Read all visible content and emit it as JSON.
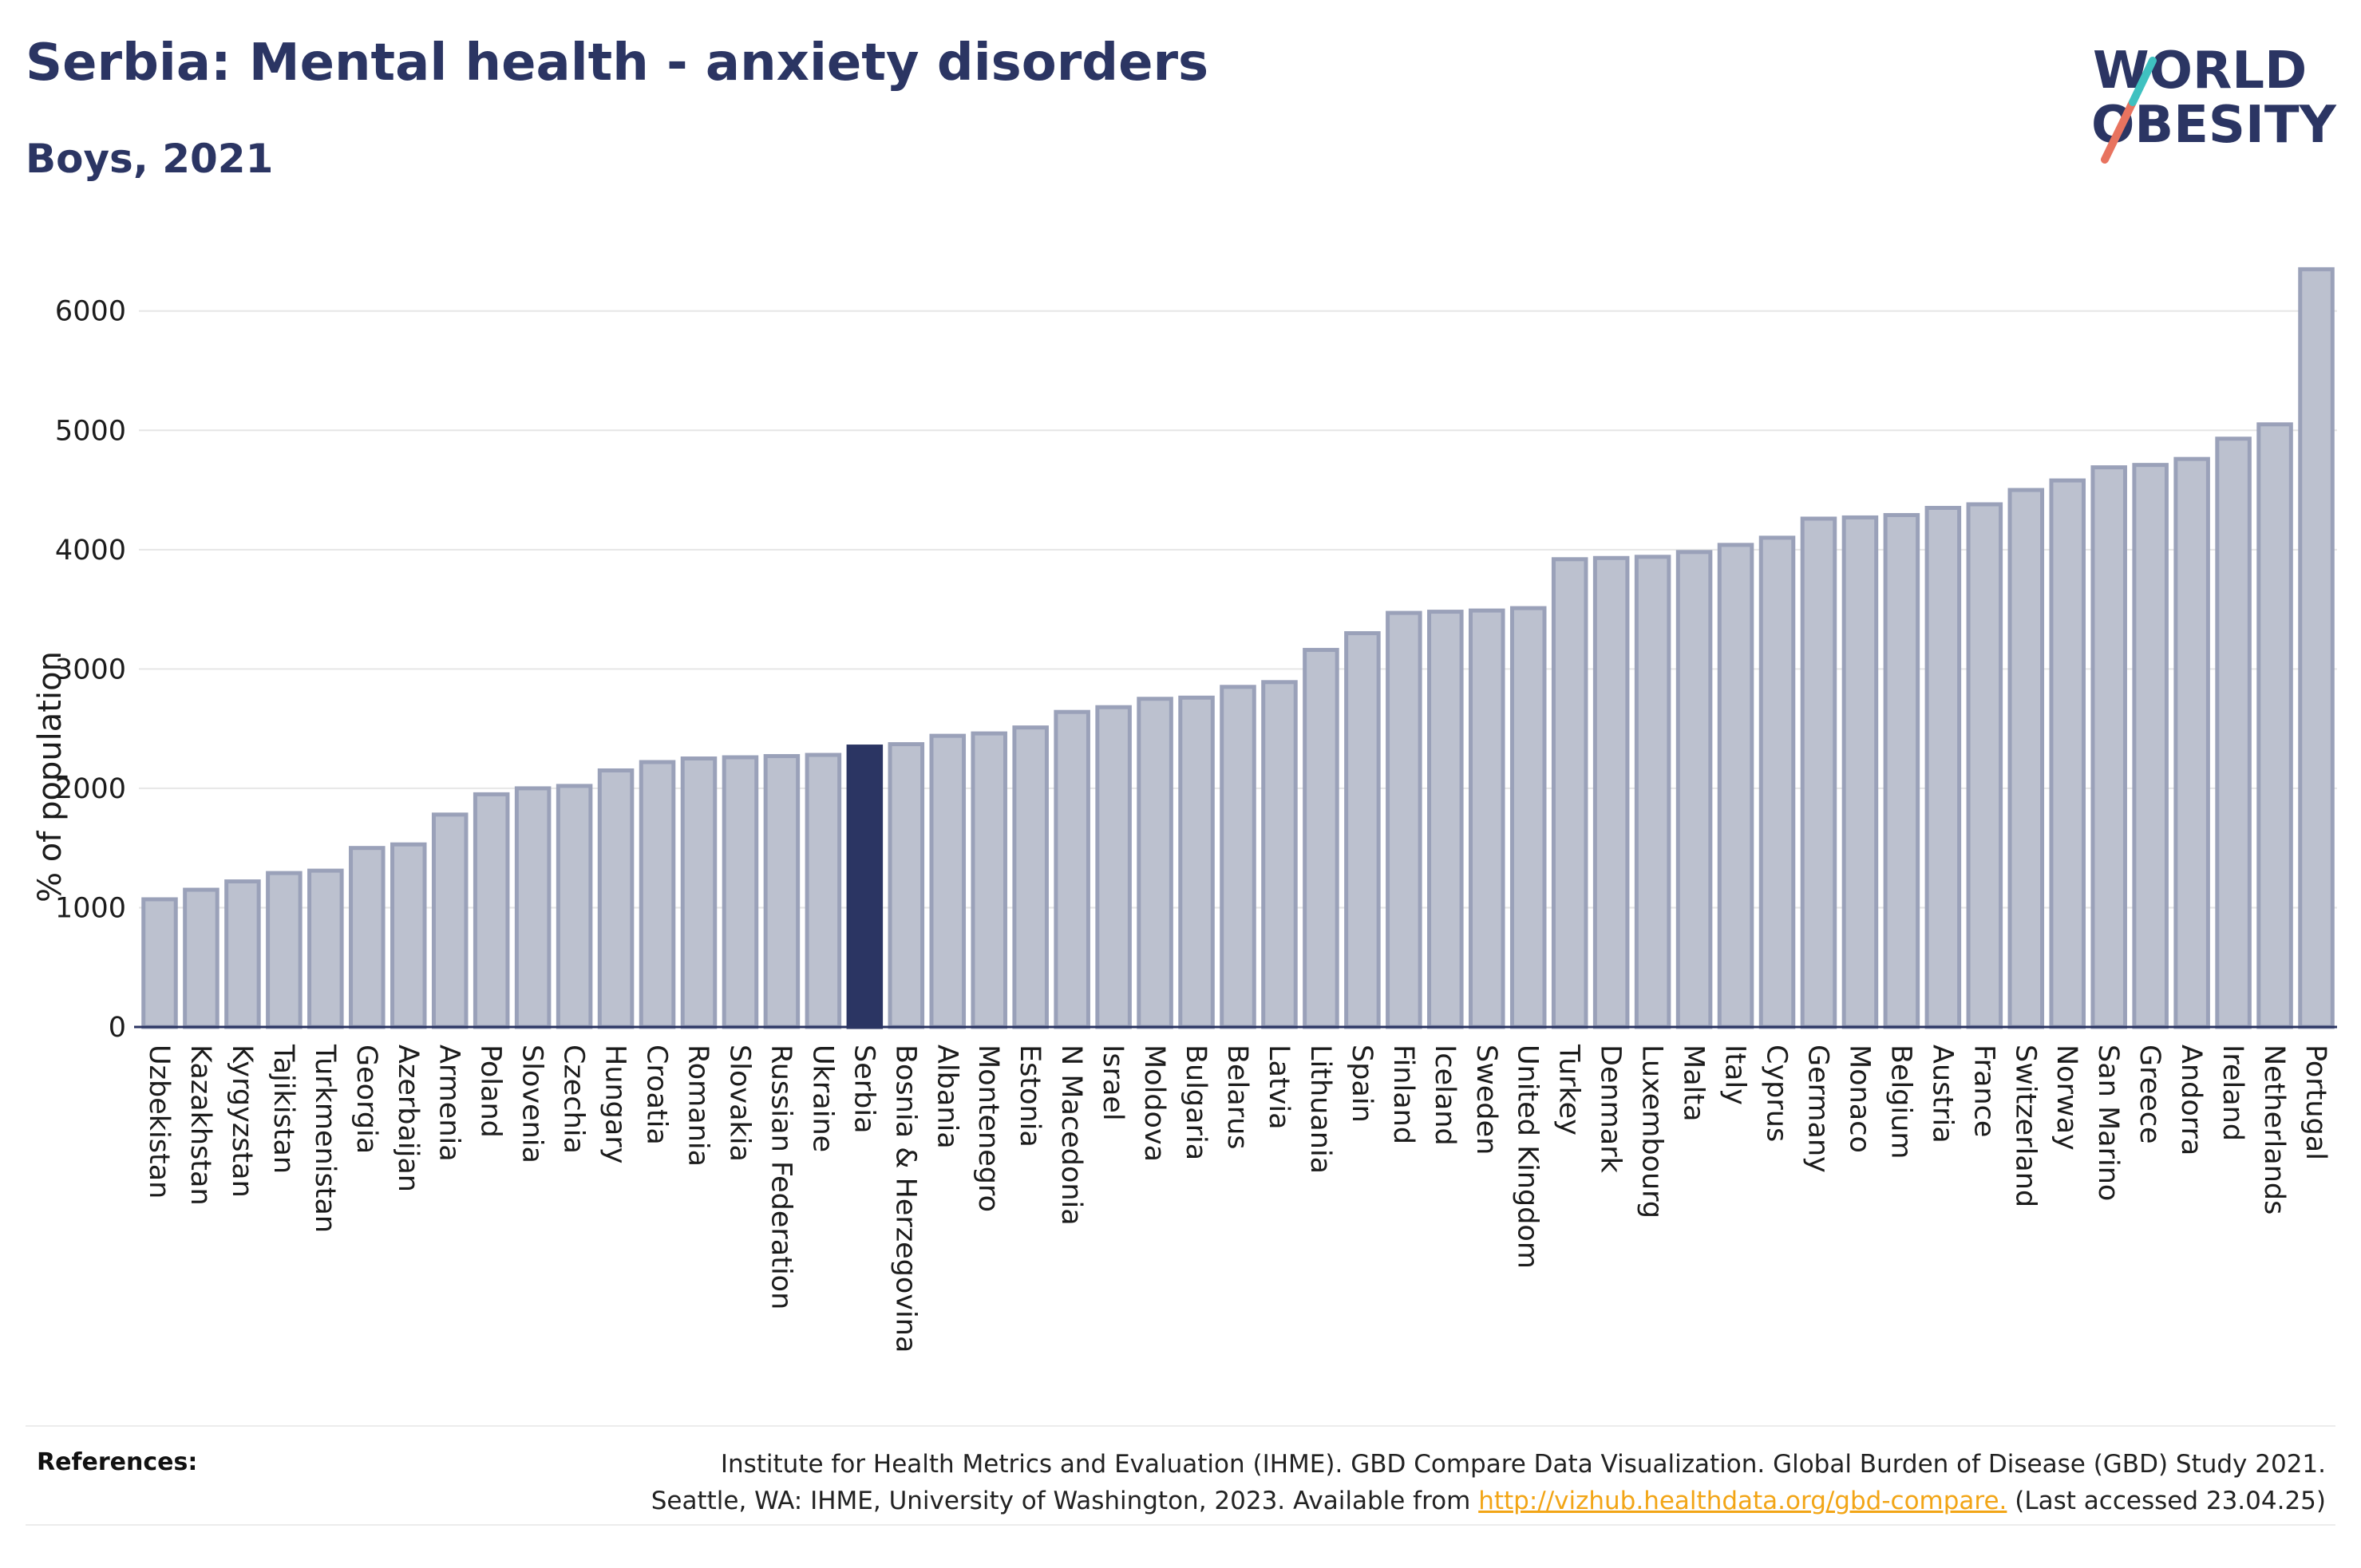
{
  "header": {
    "title": "Serbia: Mental health - anxiety disorders",
    "subtitle": "Boys, 2021"
  },
  "logo": {
    "line1": "WORLD",
    "line2": "OBESITY",
    "slash_colors": [
      "#e8735f",
      "#3fc1c0"
    ]
  },
  "chart_data": {
    "type": "bar",
    "title": "Serbia: Mental health - anxiety disorders",
    "subtitle": "Boys, 2021",
    "xlabel": "",
    "ylabel": "% of population",
    "ylim": [
      0,
      6600
    ],
    "yticks": [
      0,
      1000,
      2000,
      3000,
      4000,
      5000,
      6000
    ],
    "grid": true,
    "highlight": "Serbia",
    "colors": {
      "bar": "#bcc1cf",
      "bar_edge": "#9aa1b9",
      "highlight": "#2b3563"
    },
    "categories": [
      "Uzbekistan",
      "Kazakhstan",
      "Kyrgyzstan",
      "Tajikistan",
      "Turkmenistan",
      "Georgia",
      "Azerbaijan",
      "Armenia",
      "Poland",
      "Slovenia",
      "Czechia",
      "Hungary",
      "Croatia",
      "Romania",
      "Slovakia",
      "Russian Federation",
      "Ukraine",
      "Serbia",
      "Bosnia & Herzegovina",
      "Albania",
      "Montenegro",
      "Estonia",
      "N Macedonia",
      "Israel",
      "Moldova",
      "Bulgaria",
      "Belarus",
      "Latvia",
      "Lithuania",
      "Spain",
      "Finland",
      "Iceland",
      "Sweden",
      "United Kingdom",
      "Turkey",
      "Denmark",
      "Luxembourg",
      "Malta",
      "Italy",
      "Cyprus",
      "Germany",
      "Monaco",
      "Belgium",
      "Austria",
      "France",
      "Switzerland",
      "Norway",
      "San Marino",
      "Greece",
      "Andorra",
      "Ireland",
      "Netherlands",
      "Portugal"
    ],
    "values": [
      1070,
      1150,
      1220,
      1290,
      1310,
      1500,
      1530,
      1780,
      1950,
      2000,
      2020,
      2150,
      2220,
      2250,
      2260,
      2270,
      2280,
      2350,
      2370,
      2440,
      2460,
      2510,
      2640,
      2680,
      2750,
      2760,
      2850,
      2890,
      3160,
      3300,
      3470,
      3480,
      3490,
      3510,
      3920,
      3930,
      3940,
      3980,
      4040,
      4100,
      4260,
      4270,
      4290,
      4350,
      4380,
      4500,
      4580,
      4690,
      4710,
      4760,
      4930,
      5050,
      6350
    ]
  },
  "references": {
    "label": "References:",
    "line1": "Institute for Health Metrics and Evaluation (IHME). GBD Compare Data Visualization. Global Burden of Disease (GBD) Study 2021.",
    "line2_prefix": "Seattle, WA: IHME, University of Washington, 2023. Available from ",
    "link": "http://vizhub.healthdata.org/gbd-compare.",
    "line2_suffix": " (Last accessed 23.04.25)"
  }
}
